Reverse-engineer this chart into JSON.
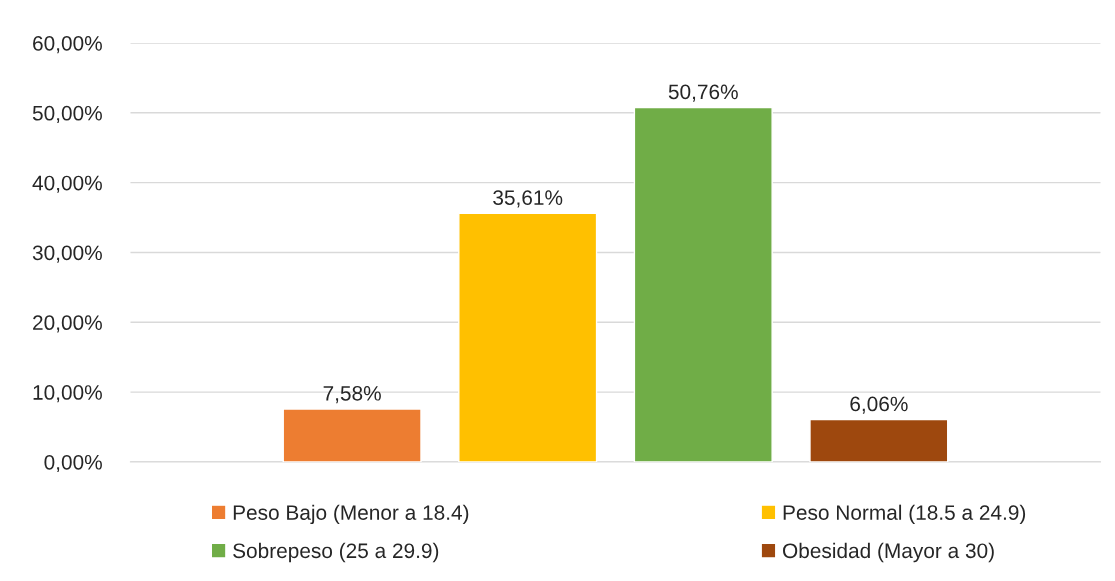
{
  "chart_data": {
    "type": "bar",
    "categories": [
      null
    ],
    "series": [
      {
        "name": "Peso Bajo (Menor a 18.4)",
        "color": "#ed7d31",
        "values": [
          7.58
        ],
        "value_labels": [
          "7,58%"
        ]
      },
      {
        "name": "Peso Normal (18.5 a 24.9)",
        "color": "#ffc000",
        "values": [
          35.61
        ],
        "value_labels": [
          "35,61%"
        ]
      },
      {
        "name": "Sobrepeso (25 a 29.9)",
        "color": "#70ad47",
        "values": [
          50.76
        ],
        "value_labels": [
          "50,76%"
        ]
      },
      {
        "name": "Obesidad (Mayor a 30)",
        "color": "#9e480e",
        "values": [
          6.06
        ],
        "value_labels": [
          "6,06%"
        ]
      }
    ],
    "ylim": [
      0,
      60
    ],
    "yticks": [
      {
        "value": 0,
        "label": "0,00%"
      },
      {
        "value": 10,
        "label": "10,00%"
      },
      {
        "value": 20,
        "label": "20,00%"
      },
      {
        "value": 30,
        "label": "30,00%"
      },
      {
        "value": 40,
        "label": "40,00%"
      },
      {
        "value": 50,
        "label": "50,00%"
      },
      {
        "value": 60,
        "label": "60,00%"
      }
    ],
    "grid": "y",
    "legend": "bottom"
  }
}
